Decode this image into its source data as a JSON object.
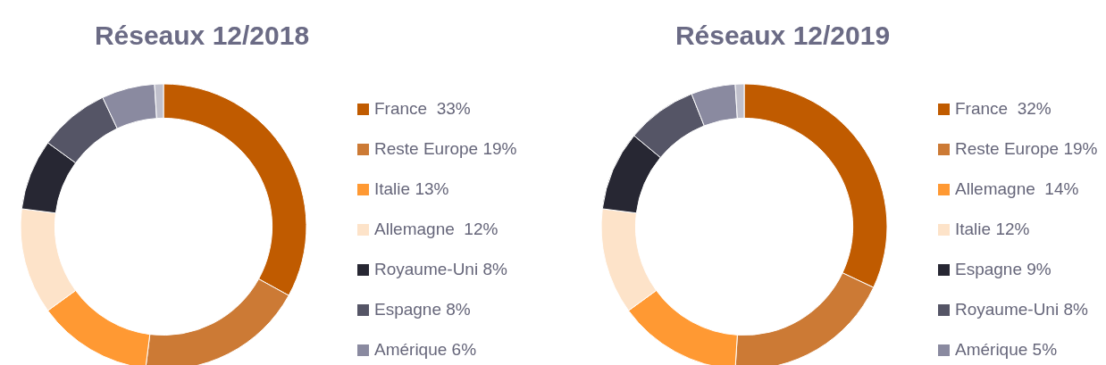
{
  "chart_data": [
    {
      "type": "donut",
      "title": "Réseaux 12/2018",
      "legend": "right",
      "categories": [
        "France  33%",
        "Reste Europe 19%",
        "Italie 13%",
        "Allemagne  12%",
        "Royaume-Uni 8%",
        "Espagne 8%",
        "Amérique 6%",
        null
      ],
      "values": [
        33,
        19,
        13,
        12,
        8,
        8,
        6,
        1
      ],
      "colors": [
        "#c05b00",
        "#cc7a35",
        "#ff9933",
        "#fde3c9",
        "#272733",
        "#555566",
        "#8a8aa0",
        "#c0c0cc"
      ]
    },
    {
      "type": "donut",
      "title": "Réseaux 12/2019",
      "legend": "right",
      "categories": [
        "France  32%",
        "Reste Europe 19%",
        "Allemagne  14%",
        "Italie 12%",
        "Espagne 9%",
        "Royaume-Uni 8%",
        "Amérique 5%",
        null
      ],
      "values": [
        32,
        19,
        14,
        12,
        9,
        8,
        5,
        1
      ],
      "colors": [
        "#c05b00",
        "#cc7a35",
        "#ff9933",
        "#fde3c9",
        "#272733",
        "#555566",
        "#8a8aa0",
        "#c0c0cc"
      ]
    }
  ]
}
